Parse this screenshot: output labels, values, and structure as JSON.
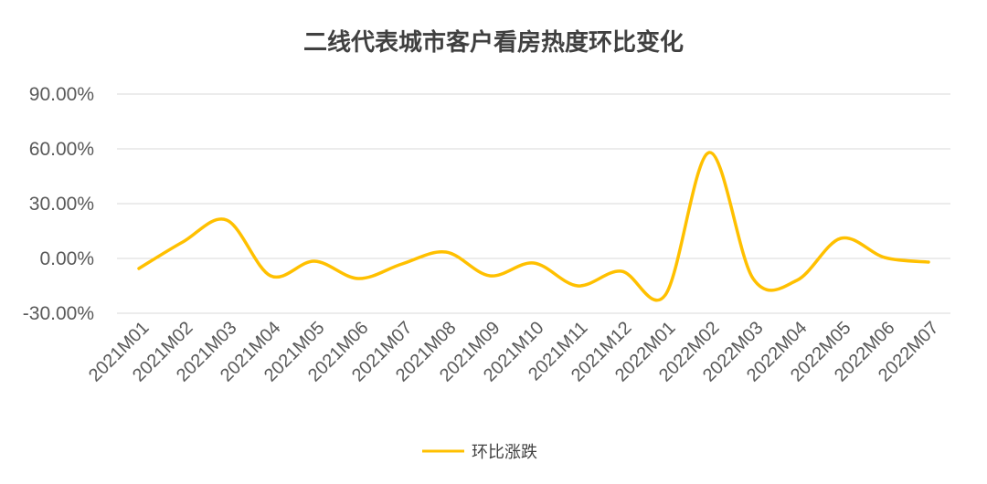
{
  "chart_data": {
    "type": "line",
    "title": "二线代表城市客户看房热度环比变化",
    "categories": [
      "2021M01",
      "2021M02",
      "2021M03",
      "2021M04",
      "2021M05",
      "2021M06",
      "2021M07",
      "2021M08",
      "2021M09",
      "2021M10",
      "2021M11",
      "2021M12",
      "2022M01",
      "2022M02",
      "2022M03",
      "2022M04",
      "2022M05",
      "2022M06",
      "2022M07"
    ],
    "series": [
      {
        "name": "环比涨跌",
        "color": "#FFC000",
        "values": [
          -5.5,
          9,
          21,
          -9.5,
          -1.5,
          -11,
          -3,
          3.5,
          -9.5,
          -2.5,
          -15,
          -7,
          -20,
          58,
          -11,
          -12,
          11,
          0.5,
          -2
        ]
      }
    ],
    "yticks": [
      "90.00%",
      "60.00%",
      "30.00%",
      "0.00%",
      "-30.00%"
    ],
    "ylim": [
      -30,
      90
    ],
    "grid": true,
    "legend_position": "bottom"
  }
}
